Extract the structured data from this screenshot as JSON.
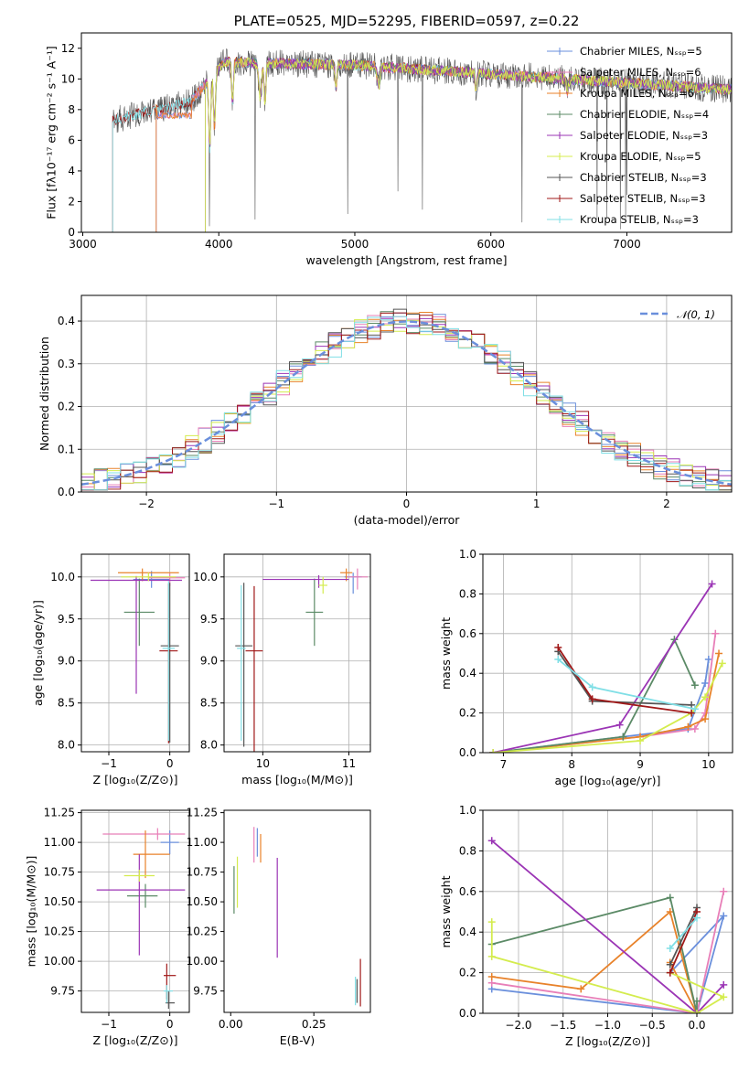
{
  "colors": [
    "#6a8fdc",
    "#e87fb8",
    "#e8822a",
    "#5b8a66",
    "#9b35b5",
    "#d4ec4e",
    "#555555",
    "#a01818",
    "#80dfe6"
  ],
  "chart_data": [
    {
      "id": "spectrum",
      "type": "line",
      "title": "PLATE=0525, MJD=52295, FIBERID=0597, z=0.22",
      "xlabel": "wavelength [Angstrom, rest frame]",
      "ylabel": "Flux [fλ10⁻¹⁷ erg cm⁻² s⁻¹ A⁻¹]",
      "xlim": [
        2990,
        7770
      ],
      "ylim": [
        0,
        13
      ],
      "xticks": [
        "3000",
        "4000",
        "5000",
        "6000",
        "7000"
      ],
      "yticks": [
        "0",
        "2",
        "4",
        "6",
        "8",
        "10",
        "12"
      ],
      "legend_position": "top-right",
      "series": [
        {
          "name": "Chabrier MILES, Nₛₛₚ=5",
          "start": 3540
        },
        {
          "name": "Salpeter MILES, Nₛₛₚ=6",
          "start": 3540
        },
        {
          "name": "Kroupa MILES, Nₛₛₚ=6",
          "start": 3540
        },
        {
          "name": "Chabrier ELODIE, Nₛₛₚ=4",
          "start": 3900
        },
        {
          "name": "Salpeter ELODIE, Nₛₛₚ=3",
          "start": 3900
        },
        {
          "name": "Kroupa ELODIE, Nₛₛₚ=5",
          "start": 3900
        },
        {
          "name": "Chabrier STELIB, Nₛₛₚ=3",
          "start": 3220
        },
        {
          "name": "Salpeter STELIB, Nₛₛₚ=3",
          "start": 3220
        },
        {
          "name": "Kroupa STELIB, Nₛₛₚ=3",
          "start": 3220
        }
      ]
    },
    {
      "id": "residuals",
      "type": "line",
      "xlabel": "(data-model)/error",
      "ylabel": "Normed distribution",
      "xlim": [
        -2.5,
        2.5
      ],
      "ylim": [
        0,
        0.46
      ],
      "xticks": [
        "−2",
        "−1",
        "0",
        "1",
        "2"
      ],
      "yticks": [
        "0.0",
        "0.1",
        "0.2",
        "0.3",
        "0.4"
      ],
      "grid": true,
      "legend": "𝒩(0, 1)",
      "legend_position": "top-right",
      "curve": "normal(0,1)"
    },
    {
      "id": "age-vs-Z",
      "type": "scatter",
      "xlabel": "Z [log₁₀(Z/Z⊙)]",
      "ylabel": "age  [log₁₀(age/yr)]",
      "xlim": [
        -1.45,
        0.32
      ],
      "ylim": [
        7.92,
        10.27
      ],
      "xticks": [
        "−1",
        "0"
      ],
      "yticks": [
        "8.0",
        "8.5",
        "9.0",
        "9.5",
        "10.0"
      ],
      "grid": true,
      "points": [
        {
          "x": -0.3,
          "y": 9.97,
          "ex": [
            0.3,
            0.3
          ],
          "ey": [
            0.1,
            0.1
          ]
        },
        {
          "x": 0.0,
          "y": 9.99,
          "ex": [
            0.35,
            0.25
          ],
          "ey": [
            0.1,
            0.05
          ]
        },
        {
          "x": -0.45,
          "y": 10.05,
          "ex": [
            0.4,
            0.6
          ],
          "ey": [
            0.1,
            0.05
          ]
        },
        {
          "x": -0.5,
          "y": 9.58,
          "ex": [
            0.25,
            0.25
          ],
          "ey": [
            0.4,
            0.4
          ]
        },
        {
          "x": -0.55,
          "y": 9.96,
          "ex": [
            0.75,
            0.75
          ],
          "ey": [
            1.35,
            0.05
          ]
        },
        {
          "x": -0.35,
          "y": 10.0,
          "ex": [
            0.45,
            0.45
          ],
          "ey": [
            0.05,
            0.05
          ]
        },
        {
          "x": 0.0,
          "y": 9.18,
          "ex": [
            0.15,
            0.15
          ],
          "ey": [
            1.15,
            0.75
          ]
        },
        {
          "x": -0.02,
          "y": 9.12,
          "ex": [
            0.15,
            0.15
          ],
          "ey": [
            1.1,
            0.8
          ]
        },
        {
          "x": -0.02,
          "y": 9.15,
          "ex": [
            0.1,
            0.1
          ],
          "ey": [
            1.1,
            0.8
          ]
        }
      ]
    },
    {
      "id": "age-vs-mass",
      "type": "scatter",
      "xlabel": "mass [log₁₀(M/M⊙)]",
      "ylabel": "",
      "xlim": [
        9.55,
        11.25
      ],
      "ylim": [
        7.92,
        10.27
      ],
      "xticks": [
        "10",
        "11"
      ],
      "yticks": [
        "8.0",
        "8.5",
        "9.0",
        "9.5",
        "10.0"
      ],
      "grid": true,
      "points": [
        {
          "x": 11.05,
          "y": 10.0,
          "ex": [
            0.1,
            0.1
          ],
          "ey": [
            0.2,
            0.05
          ]
        },
        {
          "x": 11.1,
          "y": 10.0,
          "ex": [
            0.12,
            0.12
          ],
          "ey": [
            0.15,
            0.1
          ]
        },
        {
          "x": 10.97,
          "y": 10.05,
          "ex": [
            0.07,
            0.07
          ],
          "ey": [
            0.1,
            0.05
          ]
        },
        {
          "x": 10.6,
          "y": 9.58,
          "ex": [
            0.1,
            0.1
          ],
          "ey": [
            0.4,
            0.4
          ]
        },
        {
          "x": 10.65,
          "y": 9.97,
          "ex": [
            0.65,
            0.35
          ],
          "ey": [
            0.1,
            0.05
          ]
        },
        {
          "x": 10.7,
          "y": 9.9,
          "ex": [
            0.05,
            0.05
          ],
          "ey": [
            0.1,
            0.1
          ]
        },
        {
          "x": 9.78,
          "y": 9.18,
          "ex": [
            0.1,
            0.1
          ],
          "ey": [
            1.2,
            0.75
          ]
        },
        {
          "x": 9.9,
          "y": 9.12,
          "ex": [
            0.1,
            0.1
          ],
          "ey": [
            1.2,
            0.77
          ]
        },
        {
          "x": 9.75,
          "y": 9.15,
          "ex": [
            0.05,
            0.05
          ],
          "ey": [
            1.1,
            0.75
          ]
        }
      ]
    },
    {
      "id": "weight-vs-age",
      "type": "line",
      "xlabel": "age  [log₁₀(age/yr)]",
      "ylabel": "mass weight",
      "xlim": [
        6.7,
        10.35
      ],
      "ylim": [
        0,
        1
      ],
      "xticks": [
        "7",
        "8",
        "9",
        "10"
      ],
      "yticks": [
        "0.0",
        "0.2",
        "0.4",
        "0.6",
        "0.8",
        "1.0"
      ],
      "grid": true,
      "series": [
        {
          "x": [
            6.85,
            8.75,
            9.7,
            9.95,
            10.0
          ],
          "y": [
            0.0,
            0.08,
            0.12,
            0.35,
            0.47
          ]
        },
        {
          "x": [
            6.85,
            9.0,
            9.8,
            9.95,
            10.1
          ],
          "y": [
            0.0,
            0.08,
            0.12,
            0.2,
            0.6
          ]
        },
        {
          "x": [
            6.85,
            9.0,
            9.7,
            9.95,
            10.15
          ],
          "y": [
            0.0,
            0.08,
            0.13,
            0.17,
            0.5
          ]
        },
        {
          "x": [
            6.85,
            8.75,
            9.5,
            9.8
          ],
          "y": [
            0.0,
            0.08,
            0.57,
            0.34
          ]
        },
        {
          "x": [
            6.85,
            8.7,
            10.05
          ],
          "y": [
            0.0,
            0.14,
            0.85
          ]
        },
        {
          "x": [
            6.85,
            9.0,
            9.75,
            9.95,
            10.2
          ],
          "y": [
            0.0,
            0.06,
            0.2,
            0.28,
            0.45
          ]
        },
        {
          "x": [
            7.8,
            8.3,
            9.75
          ],
          "y": [
            0.51,
            0.26,
            0.24
          ]
        },
        {
          "x": [
            7.8,
            8.3,
            9.75
          ],
          "y": [
            0.53,
            0.27,
            0.2
          ]
        },
        {
          "x": [
            7.8,
            8.3,
            9.8
          ],
          "y": [
            0.47,
            0.33,
            0.22
          ]
        }
      ]
    },
    {
      "id": "mass-vs-Z",
      "type": "scatter",
      "xlabel": "Z [log₁₀(Z/Z⊙)]",
      "ylabel": "mass [log₁₀(M/M⊙)]",
      "xlim": [
        -1.45,
        0.32
      ],
      "ylim": [
        9.57,
        11.27
      ],
      "xticks": [
        "−1",
        "0"
      ],
      "yticks": [
        "9.75",
        "10.00",
        "10.25",
        "10.50",
        "10.75",
        "11.00",
        "11.25"
      ],
      "grid": true,
      "points": [
        {
          "x": 0.0,
          "y": 11.0,
          "ex": [
            0.15,
            0.15
          ],
          "ey": [
            0.1,
            0.1
          ]
        },
        {
          "x": -0.2,
          "y": 11.07,
          "ex": [
            0.9,
            0.45
          ],
          "ey": [
            0.05,
            0.05
          ]
        },
        {
          "x": -0.4,
          "y": 10.9,
          "ex": [
            0.2,
            0.4
          ],
          "ey": [
            0.2,
            0.2
          ]
        },
        {
          "x": -0.4,
          "y": 10.55,
          "ex": [
            0.3,
            0.2
          ],
          "ey": [
            0.1,
            0.1
          ]
        },
        {
          "x": -0.5,
          "y": 10.6,
          "ex": [
            0.7,
            0.75
          ],
          "ey": [
            0.55,
            0.3
          ]
        },
        {
          "x": -0.5,
          "y": 10.72,
          "ex": [
            0.25,
            0.25
          ],
          "ey": [
            0.05,
            0.05
          ]
        },
        {
          "x": -0.02,
          "y": 9.65,
          "ex": [
            0.05,
            0.1
          ],
          "ey": [
            0.05,
            0.1
          ]
        },
        {
          "x": -0.05,
          "y": 9.88,
          "ex": [
            0.05,
            0.15
          ],
          "ey": [
            0.2,
            0.1
          ]
        },
        {
          "x": -0.05,
          "y": 9.75,
          "ex": [
            0.05,
            0.1
          ],
          "ey": [
            0.1,
            0.05
          ]
        }
      ]
    },
    {
      "id": "mass-vs-EBV",
      "type": "scatter",
      "xlabel": "E(B-V)",
      "ylabel": "",
      "xlim": [
        -0.02,
        0.42
      ],
      "ylim": [
        9.57,
        11.27
      ],
      "xticks": [
        "0.00",
        "0.25"
      ],
      "yticks": [
        "9.75",
        "10.00",
        "10.25",
        "10.50",
        "10.75",
        "11.00",
        "11.25"
      ],
      "grid": false,
      "points": [
        {
          "x": 0.08,
          "y": 11.0,
          "ex": [
            0,
            0
          ],
          "ey": [
            0.12,
            0.12
          ]
        },
        {
          "x": 0.07,
          "y": 10.98,
          "ex": [
            0,
            0
          ],
          "ey": [
            0.15,
            0.15
          ]
        },
        {
          "x": 0.09,
          "y": 10.95,
          "ex": [
            0,
            0
          ],
          "ey": [
            0.12,
            0.12
          ]
        },
        {
          "x": 0.01,
          "y": 10.6,
          "ex": [
            0,
            0
          ],
          "ey": [
            0.2,
            0.2
          ]
        },
        {
          "x": 0.14,
          "y": 10.45,
          "ex": [
            0,
            0
          ],
          "ey": [
            0.42,
            0.42
          ]
        },
        {
          "x": 0.02,
          "y": 10.6,
          "ex": [
            0,
            0
          ],
          "ey": [
            0.15,
            0.28
          ]
        },
        {
          "x": 0.38,
          "y": 9.75,
          "ex": [
            0,
            0
          ],
          "ey": [
            0.1,
            0.1
          ]
        },
        {
          "x": 0.39,
          "y": 9.82,
          "ex": [
            0,
            0
          ],
          "ey": [
            0.2,
            0.2
          ]
        },
        {
          "x": 0.375,
          "y": 9.75,
          "ex": [
            0,
            0
          ],
          "ey": [
            0.12,
            0.12
          ]
        }
      ]
    },
    {
      "id": "weight-vs-Z",
      "type": "line",
      "xlabel": "Z [log₁₀(Z/Z⊙)]",
      "ylabel": "mass weight",
      "xlim": [
        -2.4,
        0.4
      ],
      "ylim": [
        0,
        1
      ],
      "xticks": [
        "−2.0",
        "−1.5",
        "−1.0",
        "−0.5",
        "0.0"
      ],
      "yticks": [
        "0.0",
        "0.2",
        "0.4",
        "0.6",
        "0.8",
        "1.0"
      ],
      "grid": true,
      "series": [
        {
          "x": [
            -2.3,
            0.0,
            0.3,
            -0.3
          ],
          "y": [
            0.12,
            0.0,
            0.48,
            0.2
          ]
        },
        {
          "x": [
            -2.3,
            0.0,
            0.3
          ],
          "y": [
            0.15,
            0.0,
            0.6
          ]
        },
        {
          "x": [
            -2.3,
            -1.3,
            -0.3,
            0.0,
            -0.3
          ],
          "y": [
            0.18,
            0.12,
            0.5,
            0.0,
            0.25
          ]
        },
        {
          "x": [
            -2.3,
            -0.3,
            0.0,
            0.0
          ],
          "y": [
            0.34,
            0.57,
            0.0,
            0.06
          ]
        },
        {
          "x": [
            -2.3,
            0.0,
            0.3
          ],
          "y": [
            0.85,
            0.0,
            0.14
          ]
        },
        {
          "x": [
            -2.3,
            -2.3,
            0.0,
            0.3,
            -0.3
          ],
          "y": [
            0.45,
            0.28,
            0.0,
            0.08,
            0.2
          ]
        },
        {
          "x": [
            -0.3,
            0.0
          ],
          "y": [
            0.24,
            0.52
          ]
        },
        {
          "x": [
            -0.3,
            0.0
          ],
          "y": [
            0.2,
            0.5
          ]
        },
        {
          "x": [
            -0.3,
            0.0
          ],
          "y": [
            0.32,
            0.47
          ]
        }
      ]
    }
  ]
}
